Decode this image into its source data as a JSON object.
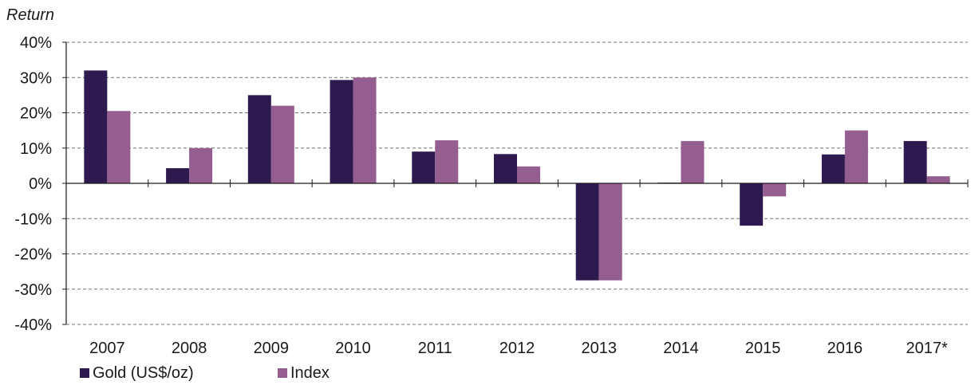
{
  "chart_data": {
    "type": "bar",
    "ylabel": "Return",
    "xlabel": "",
    "ylim": [
      -40,
      40
    ],
    "yticks": [
      40,
      30,
      20,
      10,
      0,
      -10,
      -20,
      -30,
      -40
    ],
    "ytick_labels": [
      "40%",
      "30%",
      "20%",
      "10%",
      "0%",
      "-10%",
      "-20%",
      "-30%",
      "-40%"
    ],
    "grid": true,
    "legend_position": "bottom-left",
    "categories": [
      "2007",
      "2008",
      "2009",
      "2010",
      "2011",
      "2012",
      "2013",
      "2014",
      "2015",
      "2016",
      "2017*"
    ],
    "series": [
      {
        "name": "Gold (US$/oz)",
        "color": "#2e1a4f",
        "values": [
          32,
          4.3,
          25,
          29.3,
          9,
          8.3,
          -27.5,
          0.2,
          -12,
          8.2,
          12
        ]
      },
      {
        "name": "Index",
        "color": "#955e90",
        "values": [
          20.5,
          10,
          22,
          30,
          12.2,
          4.8,
          -27.5,
          12,
          -3.7,
          15,
          2
        ]
      }
    ]
  }
}
